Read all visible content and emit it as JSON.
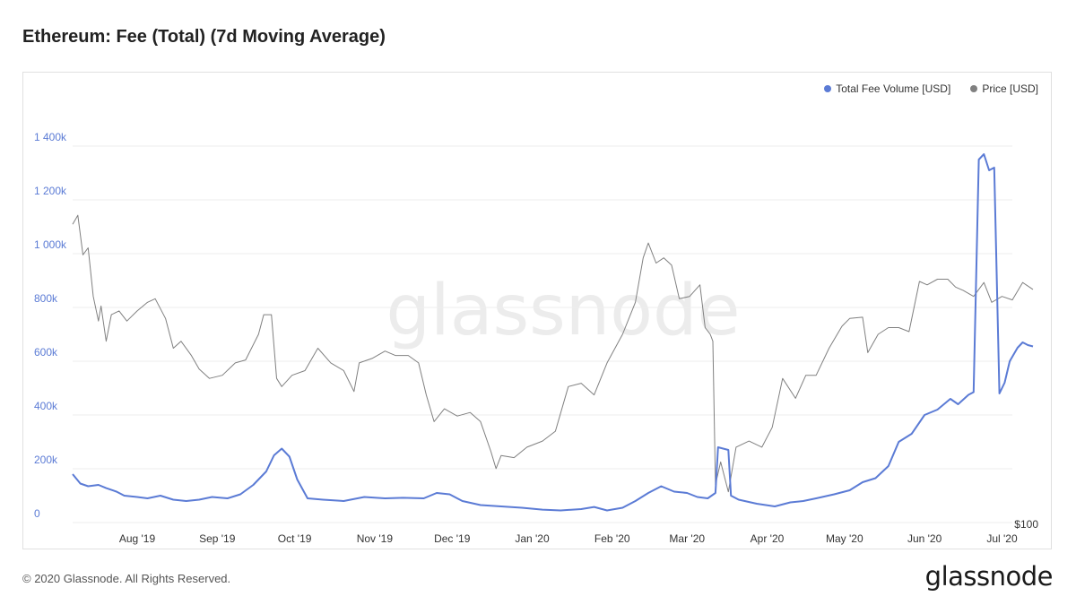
{
  "page": {
    "title": "Ethereum: Fee (Total) (7d Moving Average)",
    "copyright": "© 2020 Glassnode. All Rights Reserved.",
    "brand": "glassnode",
    "watermark": "glassnode"
  },
  "legend": {
    "items": [
      {
        "label": "Total Fee Volume [USD]",
        "color": "#5b7bd5"
      },
      {
        "label": "Price [USD]",
        "color": "#808080"
      }
    ]
  },
  "chart_data": {
    "type": "line",
    "title": "Ethereum: Fee (Total) (7d Moving Average)",
    "x_ticks": [
      "Aug '19",
      "Sep '19",
      "Oct '19",
      "Nov '19",
      "Dec '19",
      "Jan '20",
      "Feb '20",
      "Mar '20",
      "Apr '20",
      "May '20",
      "Jun '20",
      "Jul '20"
    ],
    "x_range": [
      "2019-07-07",
      "2020-07-05"
    ],
    "y_left": {
      "ticks": [
        "0",
        "200k",
        "400k",
        "600k",
        "800k",
        "1 000k",
        "1 200k",
        "1 400k"
      ],
      "range": [
        0,
        1400000
      ],
      "ticks_color": "#5b7bd5"
    },
    "y_right": {
      "ticks": [
        "$100"
      ],
      "scale": "log"
    },
    "grid": true,
    "legend_position": "top-right",
    "series": [
      {
        "name": "Total Fee Volume [USD]",
        "color": "#5b7bd5",
        "axis": "left",
        "points": [
          [
            "2019-07-07",
            180000
          ],
          [
            "2019-07-10",
            145000
          ],
          [
            "2019-07-13",
            135000
          ],
          [
            "2019-07-17",
            140000
          ],
          [
            "2019-07-20",
            128000
          ],
          [
            "2019-07-24",
            115000
          ],
          [
            "2019-07-27",
            100000
          ],
          [
            "2019-08-01",
            95000
          ],
          [
            "2019-08-05",
            90000
          ],
          [
            "2019-08-10",
            100000
          ],
          [
            "2019-08-15",
            85000
          ],
          [
            "2019-08-20",
            80000
          ],
          [
            "2019-08-25",
            85000
          ],
          [
            "2019-08-30",
            95000
          ],
          [
            "2019-09-05",
            90000
          ],
          [
            "2019-09-10",
            105000
          ],
          [
            "2019-09-15",
            140000
          ],
          [
            "2019-09-20",
            190000
          ],
          [
            "2019-09-23",
            250000
          ],
          [
            "2019-09-26",
            275000
          ],
          [
            "2019-09-29",
            245000
          ],
          [
            "2019-10-02",
            160000
          ],
          [
            "2019-10-06",
            90000
          ],
          [
            "2019-10-12",
            85000
          ],
          [
            "2019-10-20",
            80000
          ],
          [
            "2019-10-28",
            95000
          ],
          [
            "2019-11-05",
            90000
          ],
          [
            "2019-11-12",
            92000
          ],
          [
            "2019-11-20",
            90000
          ],
          [
            "2019-11-25",
            110000
          ],
          [
            "2019-11-30",
            105000
          ],
          [
            "2019-12-05",
            80000
          ],
          [
            "2019-12-12",
            65000
          ],
          [
            "2019-12-20",
            60000
          ],
          [
            "2019-12-28",
            55000
          ],
          [
            "2020-01-05",
            48000
          ],
          [
            "2020-01-12",
            45000
          ],
          [
            "2020-01-20",
            50000
          ],
          [
            "2020-01-25",
            58000
          ],
          [
            "2020-01-30",
            45000
          ],
          [
            "2020-02-05",
            55000
          ],
          [
            "2020-02-10",
            80000
          ],
          [
            "2020-02-15",
            110000
          ],
          [
            "2020-02-20",
            135000
          ],
          [
            "2020-02-25",
            115000
          ],
          [
            "2020-03-01",
            110000
          ],
          [
            "2020-03-05",
            95000
          ],
          [
            "2020-03-09",
            90000
          ],
          [
            "2020-03-12",
            110000
          ],
          [
            "2020-03-13",
            280000
          ],
          [
            "2020-03-15",
            275000
          ],
          [
            "2020-03-17",
            270000
          ],
          [
            "2020-03-18",
            100000
          ],
          [
            "2020-03-21",
            85000
          ],
          [
            "2020-03-28",
            70000
          ],
          [
            "2020-04-04",
            60000
          ],
          [
            "2020-04-10",
            75000
          ],
          [
            "2020-04-15",
            80000
          ],
          [
            "2020-04-20",
            90000
          ],
          [
            "2020-04-27",
            105000
          ],
          [
            "2020-05-03",
            120000
          ],
          [
            "2020-05-08",
            150000
          ],
          [
            "2020-05-13",
            165000
          ],
          [
            "2020-05-18",
            210000
          ],
          [
            "2020-05-22",
            300000
          ],
          [
            "2020-05-27",
            330000
          ],
          [
            "2020-06-01",
            400000
          ],
          [
            "2020-06-06",
            420000
          ],
          [
            "2020-06-11",
            460000
          ],
          [
            "2020-06-14",
            440000
          ],
          [
            "2020-06-18",
            475000
          ],
          [
            "2020-06-20",
            485000
          ],
          [
            "2020-06-22",
            1350000
          ],
          [
            "2020-06-24",
            1370000
          ],
          [
            "2020-06-26",
            1310000
          ],
          [
            "2020-06-28",
            1320000
          ],
          [
            "2020-06-30",
            480000
          ],
          [
            "2020-07-02",
            520000
          ],
          [
            "2020-07-04",
            600000
          ],
          [
            "2020-07-07",
            650000
          ],
          [
            "2020-07-09",
            670000
          ],
          [
            "2020-07-11",
            660000
          ],
          [
            "2020-07-13",
            655000
          ]
        ]
      },
      {
        "name": "Price [USD]",
        "color": "#808080",
        "axis": "right",
        "points": [
          [
            "2019-07-07",
            300
          ],
          [
            "2019-07-09",
            310
          ],
          [
            "2019-07-11",
            268
          ],
          [
            "2019-07-13",
            275
          ],
          [
            "2019-07-15",
            230
          ],
          [
            "2019-07-17",
            210
          ],
          [
            "2019-07-18",
            222
          ],
          [
            "2019-07-20",
            195
          ],
          [
            "2019-07-22",
            215
          ],
          [
            "2019-07-25",
            218
          ],
          [
            "2019-07-28",
            210
          ],
          [
            "2019-08-01",
            218
          ],
          [
            "2019-08-05",
            225
          ],
          [
            "2019-08-08",
            228
          ],
          [
            "2019-08-12",
            212
          ],
          [
            "2019-08-15",
            190
          ],
          [
            "2019-08-18",
            195
          ],
          [
            "2019-08-22",
            185
          ],
          [
            "2019-08-25",
            176
          ],
          [
            "2019-08-29",
            170
          ],
          [
            "2019-09-03",
            172
          ],
          [
            "2019-09-08",
            180
          ],
          [
            "2019-09-12",
            182
          ],
          [
            "2019-09-17",
            200
          ],
          [
            "2019-09-19",
            215
          ],
          [
            "2019-09-22",
            215
          ],
          [
            "2019-09-24",
            170
          ],
          [
            "2019-09-26",
            165
          ],
          [
            "2019-09-30",
            172
          ],
          [
            "2019-10-05",
            175
          ],
          [
            "2019-10-10",
            190
          ],
          [
            "2019-10-15",
            180
          ],
          [
            "2019-10-20",
            175
          ],
          [
            "2019-10-24",
            162
          ],
          [
            "2019-10-26",
            180
          ],
          [
            "2019-10-31",
            183
          ],
          [
            "2019-11-05",
            188
          ],
          [
            "2019-11-09",
            185
          ],
          [
            "2019-11-14",
            185
          ],
          [
            "2019-11-18",
            180
          ],
          [
            "2019-11-21",
            160
          ],
          [
            "2019-11-24",
            145
          ],
          [
            "2019-11-28",
            152
          ],
          [
            "2019-12-03",
            148
          ],
          [
            "2019-12-08",
            150
          ],
          [
            "2019-12-12",
            145
          ],
          [
            "2019-12-16",
            130
          ],
          [
            "2019-12-18",
            122
          ],
          [
            "2019-12-20",
            128
          ],
          [
            "2019-12-25",
            127
          ],
          [
            "2019-12-30",
            132
          ],
          [
            "2020-01-05",
            135
          ],
          [
            "2020-01-10",
            140
          ],
          [
            "2020-01-15",
            165
          ],
          [
            "2020-01-20",
            167
          ],
          [
            "2020-01-25",
            160
          ],
          [
            "2020-01-30",
            180
          ],
          [
            "2020-02-05",
            200
          ],
          [
            "2020-02-10",
            225
          ],
          [
            "2020-02-13",
            265
          ],
          [
            "2020-02-15",
            280
          ],
          [
            "2020-02-18",
            260
          ],
          [
            "2020-02-21",
            265
          ],
          [
            "2020-02-24",
            258
          ],
          [
            "2020-02-27",
            228
          ],
          [
            "2020-03-02",
            230
          ],
          [
            "2020-03-06",
            240
          ],
          [
            "2020-03-08",
            205
          ],
          [
            "2020-03-10",
            200
          ],
          [
            "2020-03-11",
            195
          ],
          [
            "2020-03-12",
            115
          ],
          [
            "2020-03-14",
            125
          ],
          [
            "2020-03-17",
            112
          ],
          [
            "2020-03-20",
            132
          ],
          [
            "2020-03-25",
            135
          ],
          [
            "2020-03-30",
            132
          ],
          [
            "2020-04-03",
            142
          ],
          [
            "2020-04-07",
            170
          ],
          [
            "2020-04-12",
            158
          ],
          [
            "2020-04-16",
            172
          ],
          [
            "2020-04-20",
            172
          ],
          [
            "2020-04-25",
            190
          ],
          [
            "2020-04-30",
            206
          ],
          [
            "2020-05-03",
            212
          ],
          [
            "2020-05-08",
            213
          ],
          [
            "2020-05-10",
            187
          ],
          [
            "2020-05-14",
            200
          ],
          [
            "2020-05-18",
            205
          ],
          [
            "2020-05-22",
            205
          ],
          [
            "2020-05-26",
            202
          ],
          [
            "2020-05-30",
            243
          ],
          [
            "2020-06-02",
            240
          ],
          [
            "2020-06-06",
            245
          ],
          [
            "2020-06-10",
            245
          ],
          [
            "2020-06-13",
            238
          ],
          [
            "2020-06-16",
            235
          ],
          [
            "2020-06-20",
            230
          ],
          [
            "2020-06-24",
            242
          ],
          [
            "2020-06-27",
            225
          ],
          [
            "2020-07-01",
            230
          ],
          [
            "2020-07-05",
            227
          ],
          [
            "2020-07-09",
            242
          ],
          [
            "2020-07-13",
            236
          ]
        ]
      }
    ]
  }
}
